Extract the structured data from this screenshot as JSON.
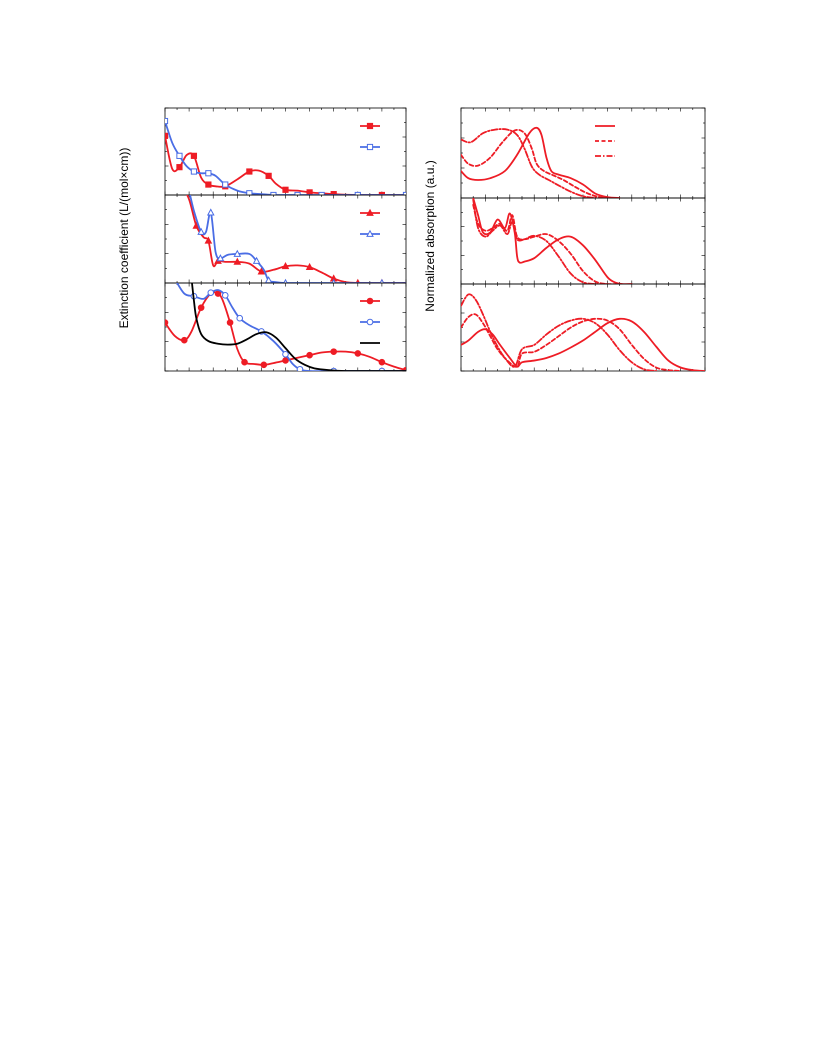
{
  "left_ylabel": "Extinction coefficient (L/(mol×cm))",
  "right_ylabel": "Normalized absorption (a.u.)",
  "colors": {
    "red": "#ee1c25",
    "blue": "#4a6de5",
    "black": "#000000"
  },
  "chart_data": [
    {
      "type": "line",
      "panel": "left-top",
      "xlim": [
        0,
        10
      ],
      "ylim": [
        0,
        1
      ],
      "legend": "top-right",
      "series": [
        {
          "color": "#ee1c25",
          "marker": "square-filled",
          "x": [
            0,
            0.3,
            0.6,
            0.9,
            1.2,
            1.5,
            1.8,
            2.1,
            2.5,
            3.0,
            3.5,
            3.9,
            4.3,
            4.6,
            5.0,
            5.5,
            6.0,
            6.5,
            7.0,
            8.0,
            9.0,
            10.0
          ],
          "y": [
            0.68,
            0.3,
            0.32,
            0.46,
            0.45,
            0.2,
            0.12,
            0.1,
            0.1,
            0.18,
            0.27,
            0.28,
            0.22,
            0.13,
            0.06,
            0.05,
            0.03,
            0.02,
            0.01,
            0.0,
            0.0,
            0.0
          ]
        },
        {
          "color": "#4a6de5",
          "marker": "square-open",
          "x": [
            0,
            0.3,
            0.6,
            0.9,
            1.2,
            1.5,
            1.8,
            2.1,
            2.5,
            3.0,
            3.5,
            4.0,
            4.5,
            5.0,
            5.5,
            6.0,
            6.5,
            7.0,
            8.0,
            9.0,
            10.0
          ],
          "y": [
            0.85,
            0.6,
            0.45,
            0.33,
            0.27,
            0.25,
            0.25,
            0.22,
            0.12,
            0.05,
            0.02,
            0.01,
            0.0,
            0.0,
            0.0,
            0.0,
            0.0,
            0.0,
            0.0,
            0.0,
            0.0
          ]
        }
      ]
    },
    {
      "type": "line",
      "panel": "left-middle",
      "xlim": [
        0,
        10
      ],
      "ylim": [
        0,
        1
      ],
      "legend": "top-right",
      "series": [
        {
          "color": "#ee1c25",
          "marker": "triangle-filled",
          "x": [
            0.7,
            1.0,
            1.3,
            1.6,
            1.8,
            2.0,
            2.2,
            2.5,
            3.0,
            3.5,
            4.0,
            4.5,
            5.0,
            5.5,
            6.0,
            6.5,
            7.0,
            7.5,
            8.0,
            8.5,
            9.0,
            10.0
          ],
          "y": [
            1.1,
            0.95,
            0.65,
            0.52,
            0.48,
            0.2,
            0.25,
            0.24,
            0.24,
            0.22,
            0.13,
            0.15,
            0.19,
            0.2,
            0.18,
            0.12,
            0.05,
            0.01,
            0.0,
            0.0,
            0.0,
            0.0
          ]
        },
        {
          "color": "#4a6de5",
          "marker": "triangle-open",
          "x": [
            1.0,
            1.2,
            1.5,
            1.7,
            1.9,
            2.1,
            2.3,
            2.6,
            3.0,
            3.5,
            3.8,
            4.1,
            4.3,
            4.6,
            5.0,
            6.0,
            7.0,
            8.0,
            9.0,
            10.0
          ],
          "y": [
            1.05,
            0.82,
            0.58,
            0.58,
            0.8,
            0.35,
            0.28,
            0.32,
            0.33,
            0.33,
            0.25,
            0.15,
            0.03,
            0.01,
            0.0,
            0.0,
            0.0,
            0.0,
            0.0,
            0.0
          ]
        }
      ]
    },
    {
      "type": "line",
      "panel": "left-bottom",
      "xlim": [
        0,
        10
      ],
      "ylim": [
        0,
        1
      ],
      "legend": "top-right",
      "series": [
        {
          "color": "#ee1c25",
          "marker": "circle-filled",
          "x": [
            0,
            0.4,
            0.8,
            1.1,
            1.5,
            1.9,
            2.2,
            2.4,
            2.7,
            3.0,
            3.3,
            3.7,
            4.1,
            4.5,
            5.0,
            5.5,
            6.0,
            6.5,
            7.0,
            7.5,
            8.0,
            8.5,
            9.0,
            9.5,
            10.0
          ],
          "y": [
            0.55,
            0.4,
            0.35,
            0.45,
            0.72,
            0.88,
            0.88,
            0.8,
            0.55,
            0.25,
            0.1,
            0.08,
            0.07,
            0.09,
            0.12,
            0.15,
            0.18,
            0.21,
            0.22,
            0.22,
            0.2,
            0.16,
            0.1,
            0.05,
            0.01
          ]
        },
        {
          "color": "#4a6de5",
          "marker": "circle-open",
          "x": [
            0.4,
            0.8,
            1.2,
            1.6,
            1.9,
            2.2,
            2.5,
            2.8,
            3.1,
            3.5,
            4.0,
            4.5,
            5.0,
            5.3,
            5.6,
            6.0,
            7.0,
            8.0,
            9.0,
            10.0
          ],
          "y": [
            1.05,
            0.88,
            0.85,
            0.82,
            0.89,
            0.92,
            0.86,
            0.72,
            0.6,
            0.52,
            0.45,
            0.34,
            0.19,
            0.08,
            0.02,
            0.0,
            0.0,
            0.0,
            0.0,
            0.0
          ]
        },
        {
          "color": "#000000",
          "marker": "none",
          "x": [
            1.1,
            1.2,
            1.3,
            1.5,
            1.8,
            2.2,
            2.6,
            3.0,
            3.4,
            3.8,
            4.2,
            4.6,
            5.0,
            5.4,
            5.8,
            6.2,
            6.8,
            7.5,
            8.5,
            10.0
          ],
          "y": [
            1.05,
            0.8,
            0.6,
            0.42,
            0.34,
            0.31,
            0.3,
            0.31,
            0.36,
            0.42,
            0.44,
            0.38,
            0.26,
            0.14,
            0.07,
            0.03,
            0.01,
            0.0,
            0.0,
            0.0
          ]
        }
      ]
    },
    {
      "type": "line",
      "panel": "right-top",
      "xlim": [
        0,
        10
      ],
      "ylim": [
        0,
        1
      ],
      "legend": "top-right",
      "series": [
        {
          "color": "#ee1c25",
          "dash": "solid",
          "x": [
            0,
            0.3,
            0.7,
            1.2,
            1.8,
            2.3,
            2.8,
            3.1,
            3.3,
            3.5,
            3.7,
            4.0,
            4.5,
            5.0,
            5.5,
            6.0,
            6.5
          ],
          "y": [
            0.3,
            0.22,
            0.2,
            0.22,
            0.3,
            0.48,
            0.72,
            0.78,
            0.7,
            0.45,
            0.3,
            0.26,
            0.22,
            0.15,
            0.05,
            0.01,
            0.0
          ]
        },
        {
          "color": "#ee1c25",
          "dash": "dash",
          "x": [
            0,
            0.3,
            0.7,
            1.2,
            1.7,
            2.2,
            2.6,
            2.9,
            3.1,
            3.4,
            3.8,
            4.2,
            4.7,
            5.2,
            5.7,
            6.2
          ],
          "y": [
            0.48,
            0.38,
            0.36,
            0.45,
            0.62,
            0.75,
            0.72,
            0.55,
            0.38,
            0.3,
            0.25,
            0.2,
            0.12,
            0.05,
            0.01,
            0.0
          ]
        },
        {
          "color": "#ee1c25",
          "dash": "dashdot",
          "x": [
            0,
            0.4,
            0.9,
            1.4,
            1.9,
            2.3,
            2.6,
            2.9,
            3.2,
            3.6,
            4.0,
            4.5,
            5.0,
            5.5,
            6.0
          ],
          "y": [
            0.65,
            0.62,
            0.72,
            0.76,
            0.76,
            0.7,
            0.55,
            0.35,
            0.26,
            0.2,
            0.14,
            0.07,
            0.02,
            0.0,
            0.0
          ]
        }
      ]
    },
    {
      "type": "line",
      "panel": "right-middle",
      "xlim": [
        0,
        10
      ],
      "ylim": [
        0,
        1
      ],
      "legend": "none",
      "series": [
        {
          "color": "#ee1c25",
          "dash": "solid",
          "x": [
            0.5,
            0.7,
            0.9,
            1.2,
            1.5,
            1.8,
            2.0,
            2.2,
            2.3,
            2.4,
            2.6,
            3.0,
            3.5,
            4.0,
            4.5,
            5.0,
            5.5,
            6.0,
            6.3,
            6.6,
            7.0
          ],
          "y": [
            1.0,
            0.8,
            0.6,
            0.6,
            0.75,
            0.65,
            0.82,
            0.6,
            0.32,
            0.25,
            0.26,
            0.3,
            0.42,
            0.52,
            0.55,
            0.45,
            0.28,
            0.08,
            0.02,
            0.0,
            0.0
          ]
        },
        {
          "color": "#ee1c25",
          "dash": "dash",
          "x": [
            0.5,
            0.7,
            1.0,
            1.3,
            1.6,
            1.9,
            2.1,
            2.3,
            2.6,
            3.0,
            3.5,
            4.0,
            4.5,
            5.0,
            5.5,
            6.0,
            6.5
          ],
          "y": [
            0.92,
            0.7,
            0.62,
            0.65,
            0.7,
            0.62,
            0.8,
            0.55,
            0.52,
            0.55,
            0.58,
            0.5,
            0.35,
            0.15,
            0.03,
            0.0,
            0.0
          ]
        },
        {
          "color": "#ee1c25",
          "dash": "dashdot",
          "x": [
            0.5,
            0.7,
            1.0,
            1.3,
            1.6,
            1.9,
            2.1,
            2.3,
            2.6,
            3.0,
            3.5,
            4.0,
            4.5,
            5.0,
            5.5,
            6.0
          ],
          "y": [
            0.98,
            0.65,
            0.55,
            0.62,
            0.68,
            0.58,
            0.72,
            0.52,
            0.52,
            0.56,
            0.5,
            0.32,
            0.12,
            0.02,
            0.0,
            0.0
          ]
        }
      ]
    },
    {
      "type": "line",
      "panel": "right-bottom",
      "xlim": [
        0,
        10
      ],
      "ylim": [
        0,
        1
      ],
      "legend": "none",
      "series": [
        {
          "color": "#ee1c25",
          "dash": "solid",
          "x": [
            0,
            0.3,
            0.7,
            1.0,
            1.3,
            1.6,
            2.0,
            2.3,
            2.5,
            3.0,
            3.5,
            4.0,
            4.5,
            5.0,
            5.5,
            6.0,
            6.5,
            7.0,
            7.5,
            8.0,
            8.5,
            9.0,
            9.5,
            10.0
          ],
          "y": [
            0.3,
            0.35,
            0.45,
            0.48,
            0.42,
            0.3,
            0.15,
            0.05,
            0.1,
            0.12,
            0.15,
            0.2,
            0.27,
            0.35,
            0.45,
            0.55,
            0.6,
            0.57,
            0.45,
            0.28,
            0.12,
            0.04,
            0.01,
            0.0
          ]
        },
        {
          "color": "#ee1c25",
          "dash": "dash",
          "x": [
            0,
            0.3,
            0.6,
            0.9,
            1.2,
            1.5,
            1.9,
            2.3,
            2.5,
            3.0,
            3.5,
            4.0,
            4.5,
            5.0,
            5.5,
            6.0,
            6.5,
            7.0,
            7.5,
            8.0,
            8.5,
            9.0
          ],
          "y": [
            0.5,
            0.62,
            0.65,
            0.55,
            0.4,
            0.25,
            0.12,
            0.05,
            0.2,
            0.22,
            0.3,
            0.4,
            0.5,
            0.57,
            0.6,
            0.58,
            0.48,
            0.3,
            0.14,
            0.04,
            0.01,
            0.0
          ]
        },
        {
          "color": "#ee1c25",
          "dash": "dashdot",
          "x": [
            0,
            0.3,
            0.6,
            0.9,
            1.2,
            1.5,
            1.8,
            2.2,
            2.5,
            3.0,
            3.5,
            4.0,
            4.5,
            5.0,
            5.5,
            6.0,
            6.5,
            7.0,
            7.5,
            8.0
          ],
          "y": [
            0.75,
            0.88,
            0.82,
            0.65,
            0.45,
            0.28,
            0.15,
            0.05,
            0.25,
            0.3,
            0.42,
            0.52,
            0.58,
            0.6,
            0.55,
            0.42,
            0.24,
            0.1,
            0.02,
            0.0
          ]
        }
      ]
    }
  ]
}
